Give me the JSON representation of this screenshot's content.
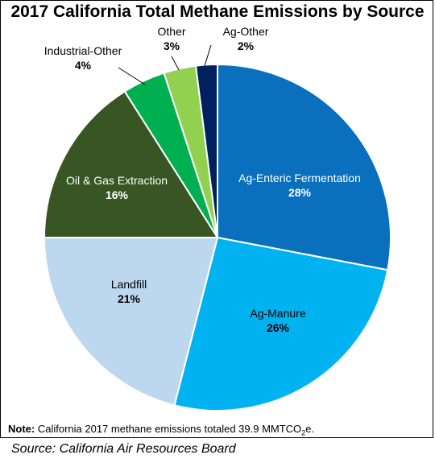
{
  "chart_data": {
    "type": "pie",
    "title": "2017 California Total Methane Emissions by Source",
    "slices": [
      {
        "name": "Ag-Enteric Fermentation",
        "value": 28,
        "label": "28%",
        "color": "#0a70be",
        "text_color": "#ffffff"
      },
      {
        "name": "Ag-Manure",
        "value": 26,
        "label": "26%",
        "color": "#00b2f0",
        "text_color": "#000000"
      },
      {
        "name": "Landfill",
        "value": 21,
        "label": "21%",
        "color": "#bdd7ee",
        "text_color": "#000000"
      },
      {
        "name": "Oil & Gas Extraction",
        "value": 16,
        "label": "16%",
        "color": "#375623",
        "text_color": "#ffffff"
      },
      {
        "name": "Industrial-Other",
        "value": 4,
        "label": "4%",
        "color": "#00b050",
        "text_color": "#000000"
      },
      {
        "name": "Other",
        "value": 3,
        "label": "3%",
        "color": "#92d050",
        "text_color": "#000000"
      },
      {
        "name": "Ag-Other",
        "value": 2,
        "label": "2%",
        "color": "#002060",
        "text_color": "#000000"
      }
    ],
    "note_label": "Note:",
    "note_text": "California 2017 methane emissions totaled 39.9 MMTCO",
    "note_sub": "2",
    "note_suffix": "e.",
    "source": "Source: California Air Resources Board"
  }
}
